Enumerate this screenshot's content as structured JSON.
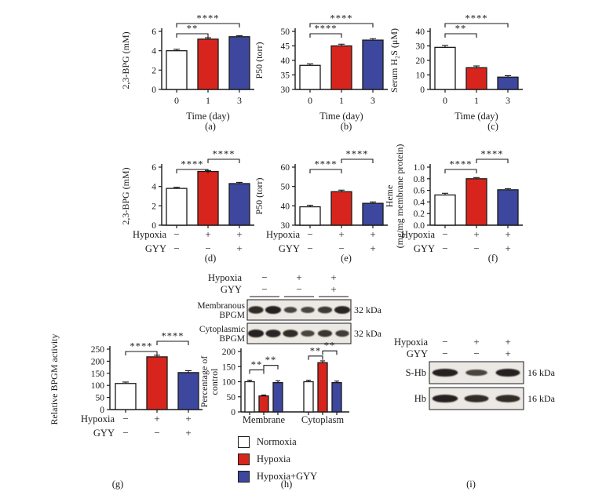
{
  "figure": {
    "colors": {
      "white": "#ffffff",
      "red": "#d7251d",
      "blue": "#3c479d",
      "ink": "#1a1a1a",
      "blot_bg": "#ece9e4",
      "band": "#231d1a"
    },
    "legend": {
      "items": [
        {
          "label": "Normoxia",
          "color": "#ffffff"
        },
        {
          "label": "Hypoxia",
          "color": "#d7251d"
        },
        {
          "label": "Hypoxia+GYY",
          "color": "#3c479d"
        }
      ]
    }
  },
  "chart_data": [
    {
      "panel": "(a)",
      "type": "bar",
      "ylabel": [
        "2,3-BPG (mM)"
      ],
      "xlabel": "Time (day)",
      "categories": [
        "0",
        "1",
        "3"
      ],
      "values": [
        4.0,
        5.2,
        5.45
      ],
      "errors": [
        0.15,
        0.15,
        0.1
      ],
      "bar_colors": [
        "white",
        "red",
        "blue"
      ],
      "ylim": [
        0,
        6
      ],
      "yticks": [
        0,
        2,
        4,
        6
      ],
      "ytick_labels": [
        "0",
        "2",
        "4",
        "6"
      ],
      "significance": [
        {
          "from": 0,
          "to": 1,
          "label": "**",
          "level": 0
        },
        {
          "from": 0,
          "to": 2,
          "label": "****",
          "level": 1
        }
      ]
    },
    {
      "panel": "(b)",
      "type": "bar",
      "ylabel": [
        "P50 (torr)"
      ],
      "xlabel": "Time (day)",
      "categories": [
        "0",
        "1",
        "3"
      ],
      "values": [
        38.3,
        45.0,
        47.0
      ],
      "errors": [
        0.5,
        0.6,
        0.5
      ],
      "bar_colors": [
        "white",
        "red",
        "blue"
      ],
      "ylim": [
        30,
        50
      ],
      "yticks": [
        30,
        35,
        40,
        45,
        50
      ],
      "ytick_labels": [
        "30",
        "35",
        "40",
        "45",
        "50"
      ],
      "significance": [
        {
          "from": 0,
          "to": 1,
          "label": "****",
          "level": 0
        },
        {
          "from": 0,
          "to": 2,
          "label": "****",
          "level": 1
        }
      ]
    },
    {
      "panel": "(c)",
      "type": "bar",
      "ylabel": [
        "Serum H₂S (μM)"
      ],
      "xlabel": "Time (day)",
      "categories": [
        "0",
        "1",
        "3"
      ],
      "values": [
        29,
        15,
        8.5
      ],
      "errors": [
        1.3,
        1.2,
        1.0
      ],
      "bar_colors": [
        "white",
        "red",
        "blue"
      ],
      "ylim": [
        0,
        40
      ],
      "yticks": [
        0,
        10,
        20,
        30,
        40
      ],
      "ytick_labels": [
        "0",
        "10",
        "20",
        "30",
        "40"
      ],
      "significance": [
        {
          "from": 0,
          "to": 1,
          "label": "**",
          "level": 0
        },
        {
          "from": 0,
          "to": 2,
          "label": "****",
          "level": 1
        }
      ]
    },
    {
      "panel": "(d)",
      "type": "bar",
      "ylabel": [
        "2,3-BPG (mM)"
      ],
      "x_matrix": {
        "rows": [
          {
            "label": "Hypoxia",
            "values": [
              "−",
              "+",
              "+"
            ]
          },
          {
            "label": "GYY",
            "values": [
              "−",
              "−",
              "+"
            ]
          }
        ]
      },
      "values": [
        3.8,
        5.55,
        4.3
      ],
      "errors": [
        0.12,
        0.1,
        0.12
      ],
      "bar_colors": [
        "white",
        "red",
        "blue"
      ],
      "ylim": [
        0,
        6
      ],
      "yticks": [
        0,
        2,
        4,
        6
      ],
      "ytick_labels": [
        "0",
        "2",
        "4",
        "6"
      ],
      "significance": [
        {
          "from": 0,
          "to": 1,
          "label": "****",
          "level": 0
        },
        {
          "from": 1,
          "to": 2,
          "label": "****",
          "level": 1
        }
      ]
    },
    {
      "panel": "(e)",
      "type": "bar",
      "ylabel": [
        "P50 (torr)"
      ],
      "x_matrix": {
        "rows": [
          {
            "label": "Hypoxia",
            "values": [
              "−",
              "+",
              "+"
            ]
          },
          {
            "label": "GYY",
            "values": [
              "−",
              "−",
              "+"
            ]
          }
        ]
      },
      "values": [
        39.5,
        47.3,
        41.3
      ],
      "errors": [
        0.8,
        0.8,
        0.7
      ],
      "bar_colors": [
        "white",
        "red",
        "blue"
      ],
      "ylim": [
        30,
        60
      ],
      "yticks": [
        30,
        40,
        50,
        60
      ],
      "ytick_labels": [
        "30",
        "40",
        "50",
        "60"
      ],
      "significance": [
        {
          "from": 0,
          "to": 1,
          "label": "****",
          "level": 0
        },
        {
          "from": 1,
          "to": 2,
          "label": "****",
          "level": 1
        }
      ]
    },
    {
      "panel": "(f)",
      "type": "bar",
      "ylabel": [
        "Heme",
        "(mg/mg membrane protein)"
      ],
      "x_matrix": {
        "rows": [
          {
            "label": "Hypoxia",
            "values": [
              "−",
              "+",
              "+"
            ]
          },
          {
            "label": "GYY",
            "values": [
              "−",
              "−",
              "+"
            ]
          }
        ]
      },
      "values": [
        0.52,
        0.8,
        0.61
      ],
      "errors": [
        0.03,
        0.02,
        0.02
      ],
      "bar_colors": [
        "white",
        "red",
        "blue"
      ],
      "ylim": [
        0,
        1.0
      ],
      "yticks": [
        0,
        0.2,
        0.4,
        0.6,
        0.8,
        1.0
      ],
      "ytick_labels": [
        "0.0",
        "0.2",
        "0.4",
        "0.6",
        "0.8",
        "1.0"
      ],
      "significance": [
        {
          "from": 0,
          "to": 1,
          "label": "****",
          "level": 0
        },
        {
          "from": 1,
          "to": 2,
          "label": "****",
          "level": 1
        }
      ]
    },
    {
      "panel": "(g)",
      "type": "bar",
      "ylabel": [
        "Relative BPGM activity"
      ],
      "x_matrix": {
        "rows": [
          {
            "label": "Hypoxia",
            "values": [
              "−",
              "+",
              "+"
            ]
          },
          {
            "label": "GYY",
            "values": [
              "−",
              "−",
              "+"
            ]
          }
        ]
      },
      "values": [
        108,
        218,
        153
      ],
      "errors": [
        6,
        7,
        8
      ],
      "bar_colors": [
        "white",
        "red",
        "blue"
      ],
      "ylim": [
        0,
        250
      ],
      "yticks": [
        0,
        50,
        100,
        150,
        200,
        250
      ],
      "ytick_labels": [
        "0",
        "50",
        "100",
        "150",
        "200",
        "250"
      ],
      "significance": [
        {
          "from": 0,
          "to": 1,
          "label": "****",
          "level": 0
        },
        {
          "from": 1,
          "to": 2,
          "label": "****",
          "level": 1
        }
      ]
    },
    {
      "panel": "(h)",
      "type": "bar",
      "ylabel": [
        "Percentage of",
        "control"
      ],
      "categories": [
        "Membrane",
        "Cytoplasm"
      ],
      "series": [
        {
          "name": "Normoxia",
          "color": "white",
          "values": [
            100,
            100
          ],
          "errors": [
            5,
            5
          ]
        },
        {
          "name": "Hypoxia",
          "color": "red",
          "values": [
            53,
            163
          ],
          "errors": [
            3,
            6
          ]
        },
        {
          "name": "Hypoxia+GYY",
          "color": "blue",
          "values": [
            97,
            97
          ],
          "errors": [
            6,
            5
          ]
        }
      ],
      "ylim": [
        0,
        200
      ],
      "yticks": [
        0,
        50,
        100,
        150,
        200
      ],
      "ytick_labels": [
        "0",
        "50",
        "100",
        "150",
        "200"
      ],
      "significance": [
        {
          "from": 0,
          "to": 1,
          "label": "**",
          "y": 139
        },
        {
          "from": 1,
          "to": 2,
          "label": "**",
          "y": 154
        },
        {
          "from": 3,
          "to": 4,
          "label": "**",
          "y": 185
        },
        {
          "from": 4,
          "to": 5,
          "label": "**",
          "y": 202
        }
      ]
    }
  ],
  "blots": {
    "h": {
      "panel": "(h)",
      "header": {
        "rows": [
          {
            "label": "Hypoxia",
            "symbols": [
              "−",
              "+",
              "+"
            ]
          },
          {
            "label": "GYY",
            "symbols": [
              "−",
              "−",
              "+"
            ]
          }
        ]
      },
      "rows": [
        {
          "label_lines": [
            "Membranous",
            "BPGM"
          ],
          "kda": "32 kDa",
          "bands": [
            {
              "i": 0.85,
              "w": 1.0
            },
            {
              "i": 0.95,
              "w": 1.05
            },
            {
              "i": 0.55,
              "w": 0.85
            },
            {
              "i": 0.6,
              "w": 0.9
            },
            {
              "i": 0.72,
              "w": 0.95
            },
            {
              "i": 0.9,
              "w": 1.05
            }
          ]
        },
        {
          "label_lines": [
            "Cytoplasmic",
            "BPGM"
          ],
          "kda": "32 kDa",
          "bands": [
            {
              "i": 0.95,
              "w": 1.05
            },
            {
              "i": 0.9,
              "w": 1.0
            },
            {
              "i": 0.85,
              "w": 1.0
            },
            {
              "i": 0.6,
              "w": 0.9
            },
            {
              "i": 0.75,
              "w": 0.95
            },
            {
              "i": 0.7,
              "w": 0.9
            }
          ]
        }
      ]
    },
    "i": {
      "panel": "(i)",
      "header": {
        "rows": [
          {
            "label": "Hypoxia",
            "symbols": [
              "−",
              "+",
              "+"
            ]
          },
          {
            "label": "GYY",
            "symbols": [
              "−",
              "−",
              "+"
            ]
          }
        ]
      },
      "rows": [
        {
          "label_lines": [
            "S-Hb"
          ],
          "kda": "16 kDa",
          "bands": [
            {
              "i": 0.95,
              "w": 1.0
            },
            {
              "i": 0.6,
              "w": 0.85
            },
            {
              "i": 0.95,
              "w": 0.95
            }
          ]
        },
        {
          "label_lines": [
            "Hb"
          ],
          "kda": "16 kDa",
          "bands": [
            {
              "i": 0.95,
              "w": 1.0
            },
            {
              "i": 0.85,
              "w": 0.95
            },
            {
              "i": 0.85,
              "w": 0.95
            }
          ]
        }
      ]
    }
  }
}
